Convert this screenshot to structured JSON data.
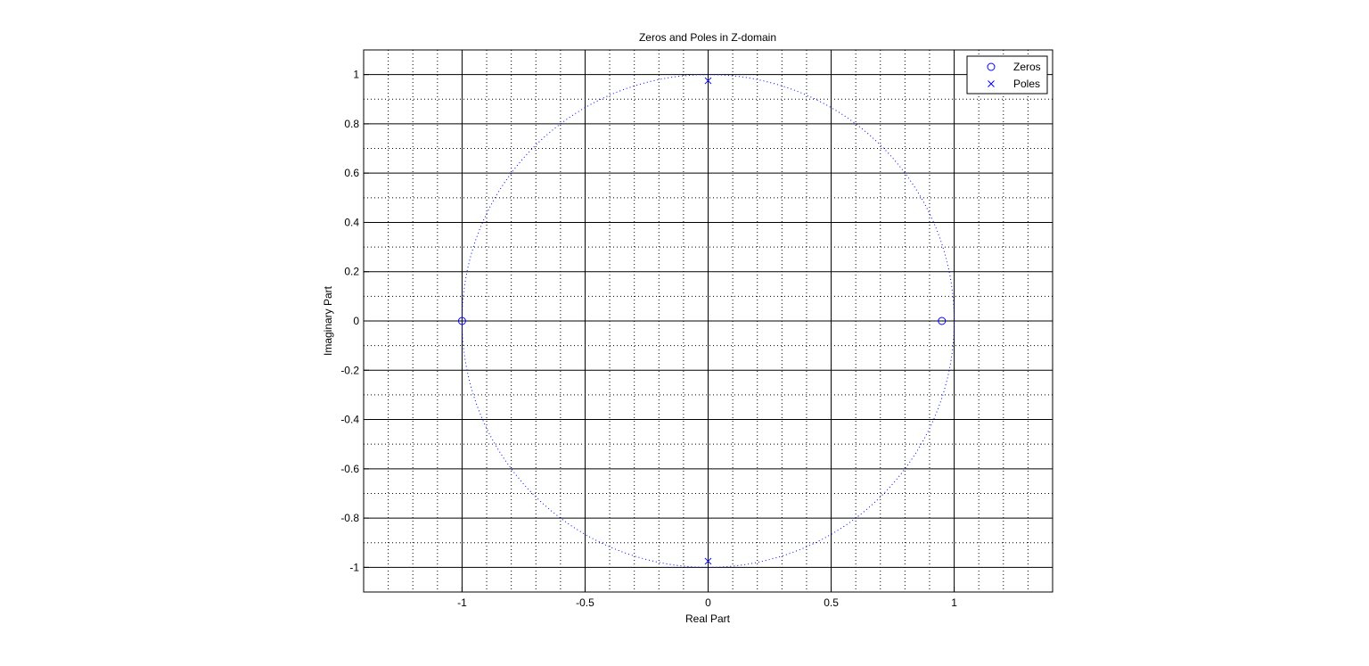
{
  "chart_data": {
    "type": "scatter",
    "title": "Zeros and Poles in Z-domain",
    "xlabel": "Real Part",
    "ylabel": "Imaginary Part",
    "xlim": [
      -1.4,
      1.4
    ],
    "ylim": [
      -1.1,
      1.1
    ],
    "x_ticks": [
      -1,
      -0.5,
      0,
      0.5,
      1
    ],
    "y_ticks": [
      -1,
      -0.8,
      -0.6,
      -0.4,
      -0.2,
      0,
      0.2,
      0.4,
      0.6,
      0.8,
      1
    ],
    "grid": true,
    "minor_grid": true,
    "unit_circle": true,
    "legend_position": "top-right",
    "colors": {
      "series": "#0000ff",
      "axes": "#000000"
    },
    "series": [
      {
        "name": "Zeros",
        "marker": "circle",
        "points": [
          [
            -1,
            0
          ],
          [
            0.95,
            0
          ]
        ]
      },
      {
        "name": "Poles",
        "marker": "x",
        "points": [
          [
            0,
            0.975
          ],
          [
            0,
            -0.975
          ]
        ]
      }
    ]
  }
}
